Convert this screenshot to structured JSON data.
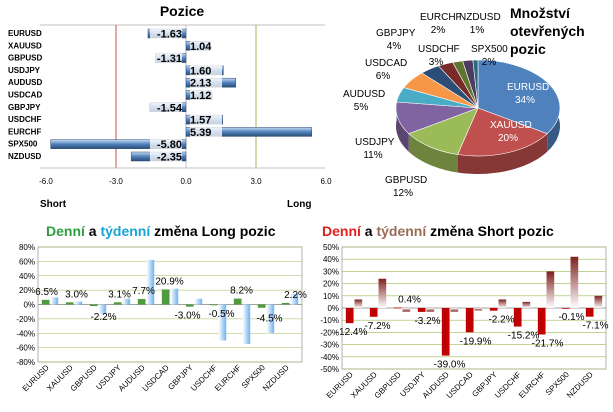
{
  "chart_data": [
    {
      "type": "bar",
      "orientation": "horizontal",
      "title": "Pozice",
      "categories": [
        "EURUSD",
        "XAUUSD",
        "GBPUSD",
        "USDJPY",
        "AUDUSD",
        "USDCAD",
        "GBPJPY",
        "USDCHF",
        "EURCHF",
        "SPX500",
        "NZDUSD"
      ],
      "values": [
        -1.63,
        1.04,
        -1.31,
        1.6,
        2.13,
        1.12,
        -1.54,
        1.57,
        5.39,
        -5.8,
        -2.35
      ],
      "value_labels": [
        "-1.63",
        "1.04",
        "-1.31",
        "1.60",
        "2.13",
        "1.12",
        "-1.54",
        "1.57",
        "5.39",
        "-5.80",
        "-2.35"
      ],
      "xlim": [
        -6.0,
        6.0
      ],
      "xticks": [
        "-6.0",
        "-3.0",
        "0.0",
        "3.0",
        "6.0"
      ],
      "xlabel_left": "Short",
      "xlabel_right": "Long",
      "colors": {
        "bar": "#4f81bd",
        "bar_light": "#c6d9f1",
        "line_short": "#c0504d",
        "line_long": "#9bbb59"
      }
    },
    {
      "type": "pie",
      "title": "Množství otevřených pozic",
      "title_lines": [
        "Množství",
        "otevřených",
        "pozic"
      ],
      "labels": [
        "EURUSD",
        "XAUUSD",
        "GBPUSD",
        "USDJPY",
        "AUDUSD",
        "USDCAD",
        "GBPJPY",
        "USDCHF",
        "SPX500",
        "EURCHF",
        "NZDUSD"
      ],
      "values": [
        34,
        20,
        12,
        11,
        5,
        6,
        4,
        3,
        2,
        2,
        1
      ],
      "value_labels": [
        "34%",
        "20%",
        "12%",
        "11%",
        "5%",
        "6%",
        "4%",
        "3%",
        "2%",
        "2%",
        "1%"
      ],
      "colors": [
        "#4f81bd",
        "#c0504d",
        "#9bbb59",
        "#8064a2",
        "#4bacc6",
        "#f79646",
        "#2c4d75",
        "#772c2a",
        "#5f7530",
        "#4d3b62",
        "#276a7c"
      ]
    },
    {
      "type": "bar",
      "title": "Denní a týdenní změna Long pozic",
      "title_parts": [
        "Denní",
        " a ",
        "týdenní",
        " změna Long pozic"
      ],
      "categories": [
        "EURUSD",
        "XAUUSD",
        "GBPUSD",
        "USDJPY",
        "AUDUSD",
        "USDCAD",
        "GBPJPY",
        "USDCHF",
        "EURCHF",
        "SPX500",
        "NZDUSD"
      ],
      "series": [
        {
          "name": "Denní",
          "values": [
            6.5,
            3.0,
            -2.2,
            3.1,
            7.7,
            20.9,
            -3.0,
            -0.5,
            8.2,
            -4.5,
            2.2
          ]
        },
        {
          "name": "týdenní",
          "values": [
            10,
            4,
            -13,
            8,
            62,
            22,
            8,
            -50,
            -55,
            -40,
            15
          ]
        }
      ],
      "data_labels": [
        "6.5%",
        "3.0%",
        "-2.2%",
        "3.1%",
        "7.7%",
        "20.9%",
        "-3.0%",
        "-0.5%",
        "8.2%",
        "-4.5%",
        "2.2%"
      ],
      "ylim": [
        -80,
        80
      ],
      "yticks": [
        "80%",
        "60%",
        "40%",
        "20%",
        "0%",
        "-20%",
        "-40%",
        "-60%",
        "-80%"
      ],
      "colors": {
        "daily": "#4e9a3c",
        "weekly": "#6fb1f0",
        "daily_title": "#2f9e41",
        "weekly_title": "#17a3d4"
      }
    },
    {
      "type": "bar",
      "title": "Denní a týdenní změna Short pozic",
      "title_parts": [
        "Denní",
        " a ",
        "týdenní",
        " změna Short pozic"
      ],
      "categories": [
        "EURUSD",
        "XAUUSD",
        "GBPUSD",
        "USDJPY",
        "AUDUSD",
        "USDCAD",
        "GBPJPY",
        "USDCHF",
        "EURCHF",
        "SPX500",
        "NZDUSD"
      ],
      "series": [
        {
          "name": "Denní",
          "values": [
            -12.4,
            -7.2,
            0.4,
            -3.2,
            -39.0,
            -19.9,
            -2.2,
            -15.2,
            -21.7,
            -0.1,
            -7.1
          ]
        },
        {
          "name": "týdenní",
          "values": [
            7,
            24,
            -3,
            -3,
            -3,
            -2,
            7,
            5,
            30,
            42,
            10
          ]
        }
      ],
      "data_labels": [
        "-12.4%",
        "-7.2%",
        "0.4%",
        "-3.2%",
        "-39.0%",
        "-19.9%",
        "-2.2%",
        "-15.2%",
        "-21.7%",
        "-0.1%",
        "-7.1%"
      ],
      "ylim": [
        -50,
        50
      ],
      "yticks": [
        "50%",
        "40%",
        "30%",
        "20%",
        "10%",
        "0%",
        "-10%",
        "-20%",
        "-30%",
        "-40%",
        "-50%"
      ],
      "colors": {
        "daily": "#c00000",
        "weekly": "#7f2020",
        "daily_title": "#e02020",
        "weekly_title": "#9a6a55"
      }
    }
  ]
}
